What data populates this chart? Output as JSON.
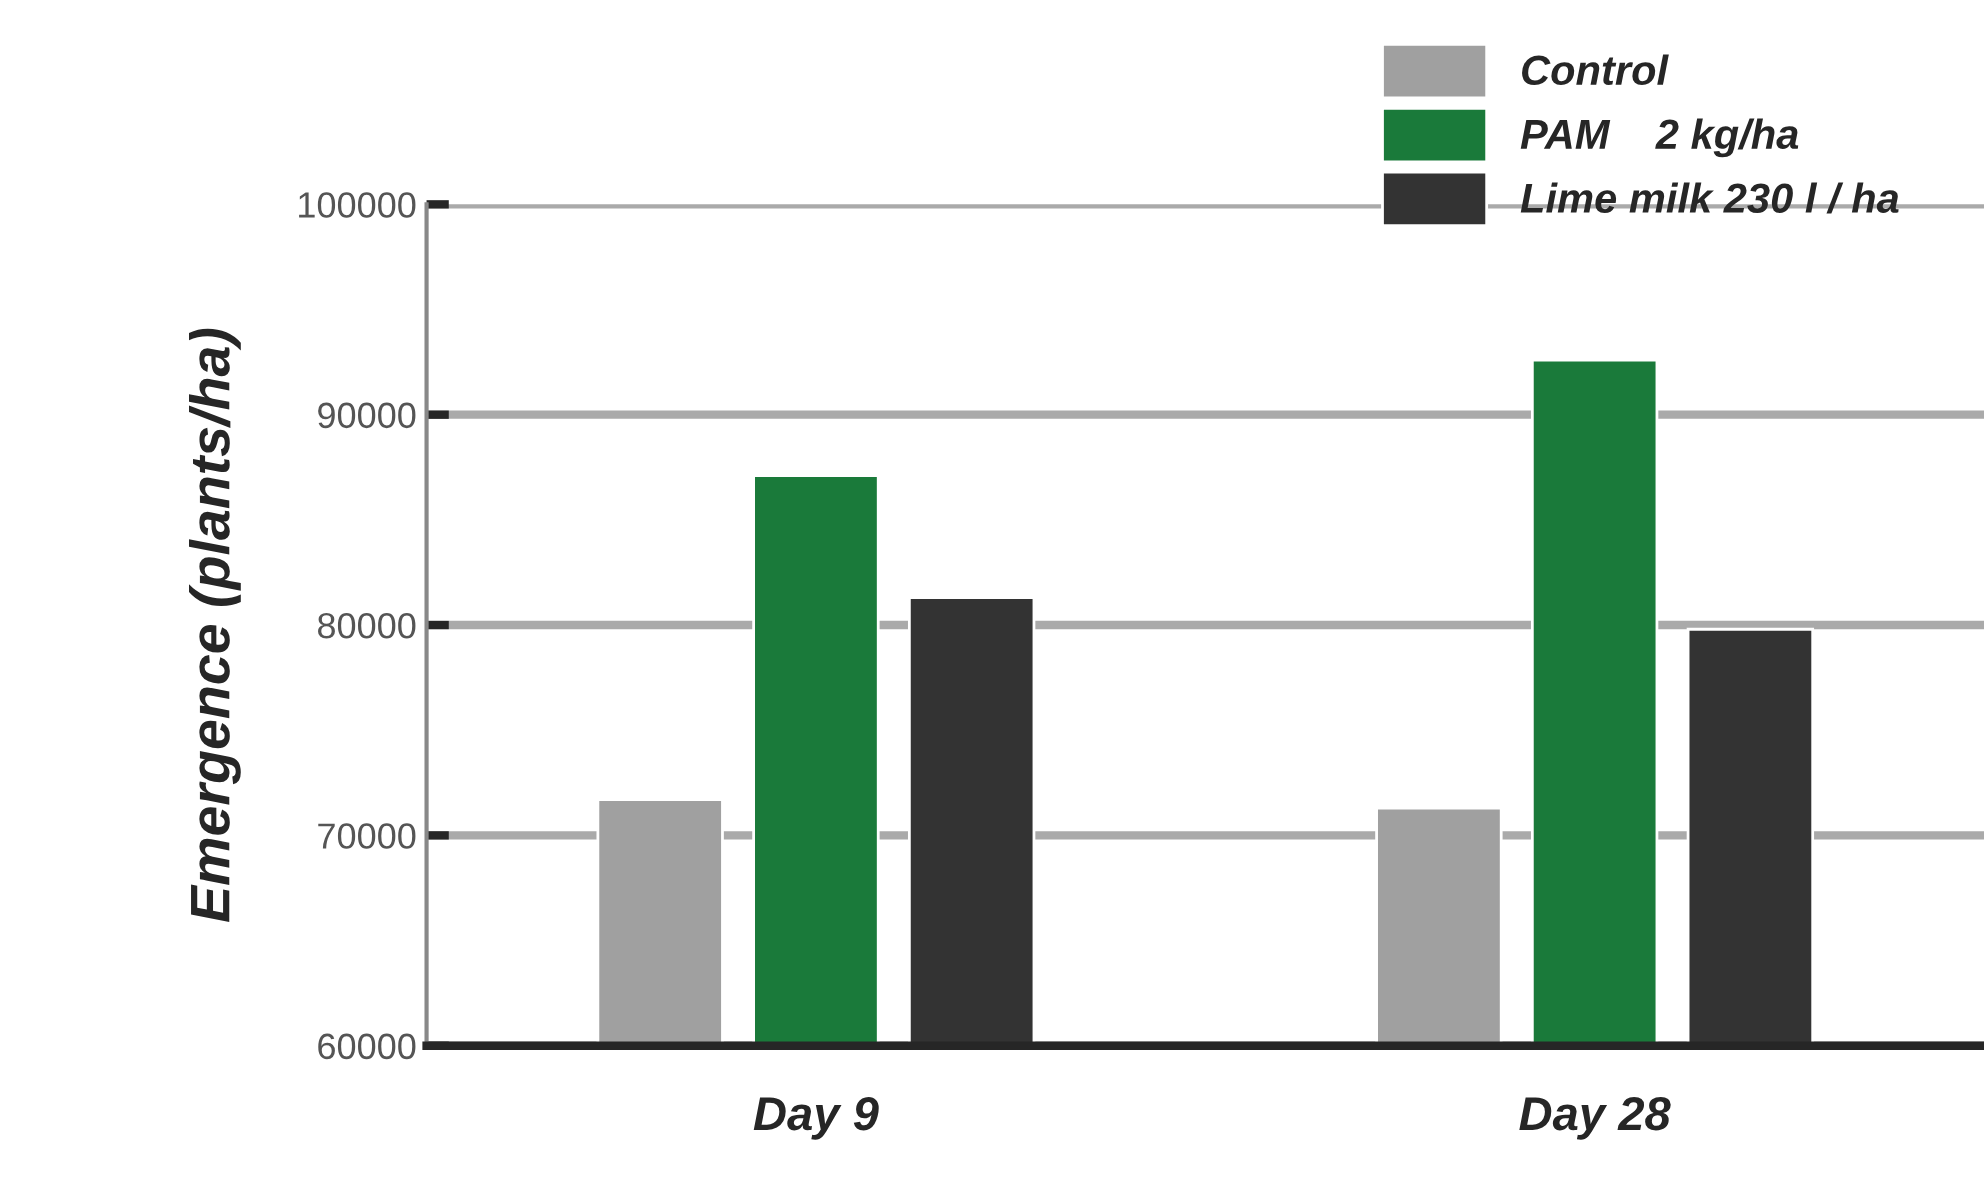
{
  "chart_data": {
    "type": "bar",
    "ylabel": "Emergence (plants/ha)",
    "categories": [
      "Day 9",
      "Day 28"
    ],
    "series": [
      {
        "name": "Control",
        "color": "#a0a0a0",
        "values": [
          71700,
          71300
        ]
      },
      {
        "name": "PAM    2 kg/ha",
        "color": "#1a7a3a",
        "values": [
          87100,
          92600
        ]
      },
      {
        "name": "Lime milk 230 l / ha",
        "color": "#333333",
        "values": [
          81300,
          79800
        ]
      }
    ],
    "ylim": [
      60000,
      100000
    ],
    "yticks": [
      60000,
      70000,
      80000,
      90000,
      100000
    ],
    "grid": "y",
    "legend": "top right"
  }
}
